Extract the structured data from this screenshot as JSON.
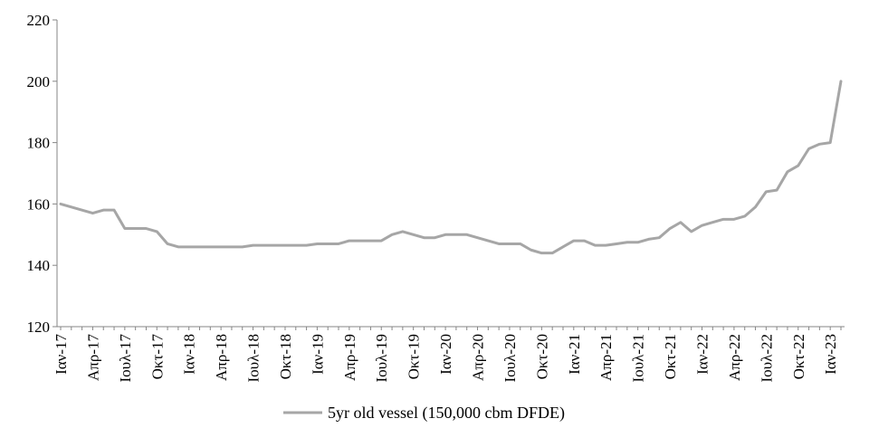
{
  "chart_data": {
    "type": "line",
    "title": "",
    "xlabel": "",
    "ylabel": "",
    "ylim": [
      120,
      220
    ],
    "yticks": [
      120,
      140,
      160,
      180,
      200,
      220
    ],
    "grid": false,
    "legend_position": "bottom",
    "x_tick_labels": [
      "Ιαν-17",
      "Απρ-17",
      "Ιουλ-17",
      "Οκτ-17",
      "Ιαν-18",
      "Απρ-18",
      "Ιουλ-18",
      "Οκτ-18",
      "Ιαν-19",
      "Απρ-19",
      "Ιουλ-19",
      "Οκτ-19",
      "Ιαν-20",
      "Απρ-20",
      "Ιουλ-20",
      "Οκτ-20",
      "Ιαν-21",
      "Απρ-21",
      "Ιουλ-21",
      "Οκτ-21",
      "Ιαν-22",
      "Απρ-22",
      "Ιουλ-22",
      "Οκτ-22",
      "Ιαν-23"
    ],
    "series": [
      {
        "name": "5yr old vessel (150,000 cbm DFDE)",
        "color": "#a6a6a6",
        "values": [
          160,
          159,
          158,
          157,
          158,
          158,
          152,
          152,
          152,
          151,
          147,
          146,
          146,
          146,
          146,
          146,
          146,
          146,
          146.5,
          146.5,
          146.5,
          146.5,
          146.5,
          146.5,
          147,
          147,
          147,
          148,
          148,
          148,
          148,
          150,
          151,
          150,
          149,
          149,
          150,
          150,
          150,
          149,
          148,
          147,
          147,
          147,
          145,
          144,
          144,
          146,
          148,
          148,
          146.5,
          146.5,
          147,
          147.5,
          147.5,
          148.5,
          149,
          152,
          154,
          151,
          153,
          154,
          155,
          155,
          156,
          159,
          164,
          164.5,
          170.5,
          172.5,
          178,
          179.5,
          180,
          200
        ]
      }
    ]
  }
}
